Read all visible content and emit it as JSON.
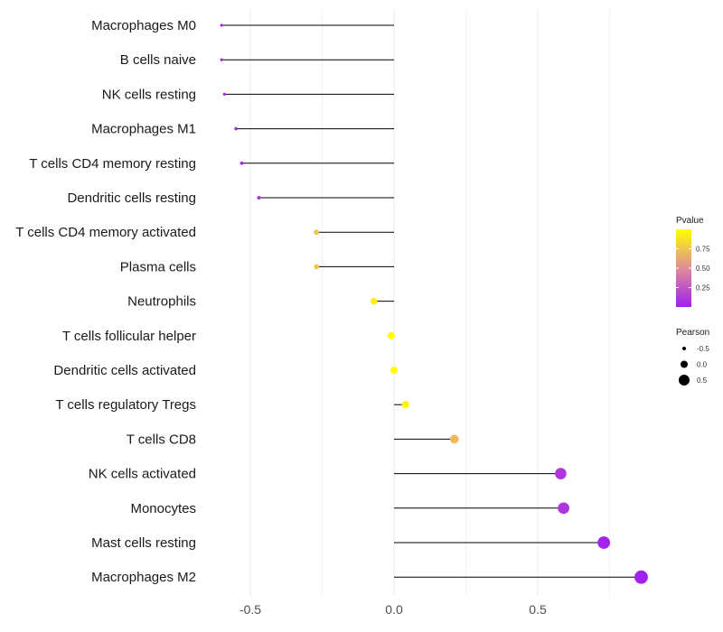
{
  "chart_data": {
    "type": "lollipop",
    "categories": [
      "Macrophages M0",
      "B cells naive",
      "NK cells resting",
      "Macrophages M1",
      "T cells CD4 memory resting",
      "Dendritic cells resting",
      "T cells CD4 memory activated",
      "Plasma cells",
      "Neutrophils",
      "T cells follicular helper",
      "Dendritic cells activated",
      "T cells regulatory  Tregs",
      "T cells CD8",
      "NK cells activated",
      "Monocytes",
      "Mast cells resting",
      "Macrophages M2"
    ],
    "values": [
      -0.6,
      -0.6,
      -0.59,
      -0.55,
      -0.53,
      -0.47,
      -0.27,
      -0.27,
      -0.07,
      -0.01,
      0.0,
      0.04,
      0.21,
      0.58,
      0.59,
      0.73,
      0.86
    ],
    "pvalues": [
      0.03,
      0.03,
      0.04,
      0.05,
      0.06,
      0.1,
      0.75,
      0.75,
      0.92,
      0.99,
      1.0,
      0.96,
      0.7,
      0.1,
      0.1,
      0.02,
      0.01
    ],
    "x_ticks": [
      "-0.5",
      "0.0",
      "0.5"
    ],
    "x_tick_values": [
      -0.5,
      0.0,
      0.5
    ],
    "xlim": [
      -0.63,
      0.89
    ],
    "xlabel": "",
    "ylabel": "",
    "grid": "vertical",
    "legend_color": {
      "title": "Pvalue",
      "ticks": [
        "0.75",
        "0.50",
        "0.25"
      ],
      "tick_values": [
        0.75,
        0.5,
        0.25
      ],
      "range": [
        0.0,
        1.0
      ],
      "color_low": "#a020f0",
      "color_mid": "#e08c98",
      "color_high": "#ffff00"
    },
    "legend_size": {
      "title": "Pearson",
      "labels": [
        "-0.5",
        "0.0",
        "0.5"
      ],
      "values": [
        -0.5,
        0.0,
        0.5
      ]
    }
  }
}
